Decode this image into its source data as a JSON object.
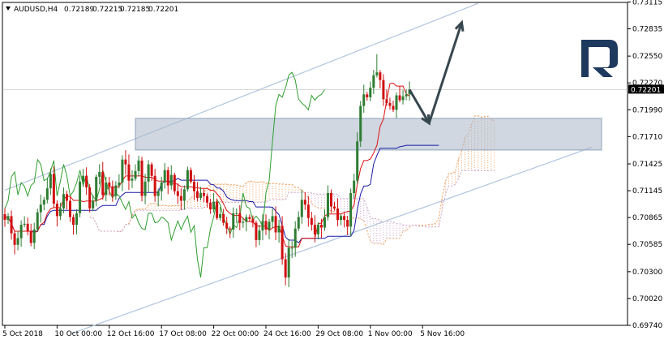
{
  "header": {
    "symbol": "AUDUSD,H4",
    "open": "0.72189",
    "high": "0.72215",
    "low": "0.72185",
    "close": "0.72201"
  },
  "chart_data": {
    "type": "candlestick",
    "title": "AUDUSD,H4 0.72189 0.72215 0.72185 0.72201",
    "ylim": [
      0.6974,
      0.7311
    ],
    "xlim": [
      0,
      132
    ],
    "y_ticks": [
      "0.73115",
      "0.72835",
      "0.72550",
      "0.72270",
      "0.71990",
      "0.71710",
      "0.71425",
      "0.71145",
      "0.70865",
      "0.70585",
      "0.70300",
      "0.70020",
      "0.69740"
    ],
    "x_ticks": [
      {
        "i": 0,
        "label": "5 Oct 2018"
      },
      {
        "i": 16,
        "label": "10 Oct 00:00"
      },
      {
        "i": 32,
        "label": "12 Oct 16:00"
      },
      {
        "i": 48,
        "label": "17 Oct 08:00"
      },
      {
        "i": 64,
        "label": "22 Oct 00:00"
      },
      {
        "i": 80,
        "label": "24 Oct 16:00"
      },
      {
        "i": 96,
        "label": "29 Oct 08:00"
      },
      {
        "i": 112,
        "label": "1 Nov 00:00"
      },
      {
        "i": 128,
        "label": "5 Nov 16:00"
      }
    ],
    "current_price": "0.72201",
    "close_series": [
      0.7084,
      0.7088,
      0.707,
      0.7058,
      0.7065,
      0.7079,
      0.708,
      0.7072,
      0.706,
      0.7074,
      0.7092,
      0.71,
      0.7105,
      0.7117,
      0.7132,
      0.7101,
      0.7088,
      0.7096,
      0.7111,
      0.7104,
      0.7087,
      0.7079,
      0.7091,
      0.7124,
      0.713,
      0.7118,
      0.7096,
      0.7104,
      0.7129,
      0.7134,
      0.711,
      0.7123,
      0.7119,
      0.7109,
      0.712,
      0.7123,
      0.7147,
      0.7142,
      0.7125,
      0.7127,
      0.7135,
      0.7146,
      0.7109,
      0.7124,
      0.7142,
      0.713,
      0.7109,
      0.7114,
      0.7123,
      0.7136,
      0.712,
      0.7131,
      0.7114,
      0.7109,
      0.7104,
      0.7116,
      0.7136,
      0.7124,
      0.7114,
      0.7107,
      0.7112,
      0.7109,
      0.7102,
      0.7095,
      0.7103,
      0.7086,
      0.709,
      0.7081,
      0.7075,
      0.7074,
      0.7091,
      0.7091,
      0.7081,
      0.7082,
      0.7087,
      0.7085,
      0.7081,
      0.7063,
      0.7073,
      0.7083,
      0.7074,
      0.7082,
      0.7088,
      0.7071,
      0.7078,
      0.7043,
      0.7024,
      0.7055,
      0.7055,
      0.7075,
      0.7087,
      0.7105,
      0.71,
      0.7086,
      0.7079,
      0.7069,
      0.7079,
      0.7076,
      0.7087,
      0.7112,
      0.7098,
      0.7096,
      0.7084,
      0.7088,
      0.7084,
      0.7077,
      0.7112,
      0.7125,
      0.7166,
      0.7203,
      0.7215,
      0.7212,
      0.7222,
      0.7235,
      0.7238,
      0.723,
      0.721,
      0.7206,
      0.7203,
      0.7199,
      0.7214,
      0.7209,
      0.7213,
      0.7215,
      0.722
    ],
    "projection": {
      "from": [
        124,
        0.722
      ],
      "mid": [
        130,
        0.7185
      ],
      "to": [
        140,
        0.729
      ]
    },
    "zone": {
      "from_i": 40,
      "to_i": 175,
      "top": 0.719,
      "bottom": 0.7157
    },
    "channel_upper": [
      [
        0,
        0.7115
      ],
      [
        145,
        0.731
      ]
    ],
    "channel_lower": [
      [
        20,
        0.6965
      ],
      [
        180,
        0.716
      ]
    ]
  }
}
